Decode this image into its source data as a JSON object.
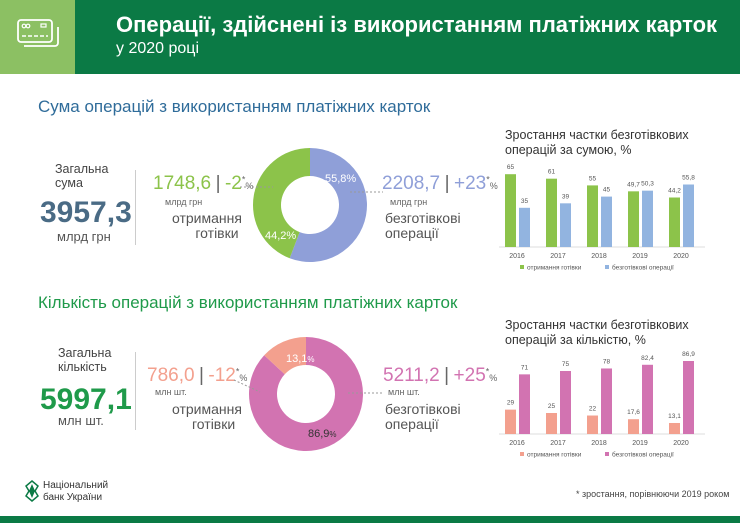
{
  "header": {
    "title": "Операції, здійснені із використанням платіжних карток",
    "subtitle": "у 2020 році",
    "icon": "credit-cards-icon"
  },
  "colors": {
    "header": "#0b7a45",
    "cash1": "#8cc34a",
    "cashless1": "#8f9fd8",
    "cashlessbar1": "#92b4e0",
    "cash2": "#f3a08e",
    "cashless2": "#d273b1"
  },
  "sum": {
    "heading": "Сума операцій з використанням платіжних карток",
    "total_label": "Загальна сума",
    "total": "3957,3",
    "total_unit": "млрд грн",
    "cash": {
      "value": "1748,6",
      "change": "-2",
      "star": "*",
      "pct": "%",
      "unit": "млрд грн",
      "label1": "отримання",
      "label2": "готівки",
      "share": "44,2%"
    },
    "cashless": {
      "value": "2208,7",
      "change": "+23",
      "star": "*",
      "pct": "%",
      "unit": "млрд грн",
      "label1": "безготівкові",
      "label2": "операції",
      "share": "55,8%"
    }
  },
  "count": {
    "heading": "Кількість операцій з використанням платіжних карток",
    "total_label": "Загальна кількість",
    "total": "5997,1",
    "total_unit": "млн шт.",
    "cash": {
      "value": "786,0",
      "change": "-12",
      "star": "*",
      "pct": "%",
      "unit": "млн шт.",
      "label1": "отримання",
      "label2": "готівки",
      "share": "13,1",
      "share_pct": "%"
    },
    "cashless": {
      "value": "5211,2",
      "change": "+25",
      "star": "*",
      "pct": "%",
      "unit": "млн шт.",
      "label1": "безготівкові",
      "label2": "операції",
      "share": "86,9",
      "share_pct": "%"
    }
  },
  "chart_data": [
    {
      "type": "bar",
      "title": "Зростання частки безготівкових операцій за сумою, %",
      "categories": [
        "2016",
        "2017",
        "2018",
        "2019",
        "2020"
      ],
      "series": [
        {
          "name": "отримання готівки",
          "values": [
            65,
            61,
            55,
            49.7,
            44.2
          ],
          "labels": [
            "65",
            "61",
            "55",
            "49,7",
            "44,2"
          ]
        },
        {
          "name": "безготівкові операції",
          "values": [
            35,
            39,
            45,
            50.3,
            55.8
          ],
          "labels": [
            "35",
            "39",
            "45",
            "50,3",
            "55,8"
          ]
        }
      ],
      "legend": "bottom"
    },
    {
      "type": "bar",
      "title": "Зростання частки безготівкових операцій за кількістю, %",
      "categories": [
        "2016",
        "2017",
        "2018",
        "2019",
        "2020"
      ],
      "series": [
        {
          "name": "отримання готівки",
          "values": [
            29,
            25,
            22,
            17.6,
            13.1
          ],
          "labels": [
            "29",
            "25",
            "22",
            "17,6",
            "13,1"
          ]
        },
        {
          "name": "безготівкові операції",
          "values": [
            71,
            75,
            78,
            82.4,
            86.9
          ],
          "labels": [
            "71",
            "75",
            "78",
            "82,4",
            "86,9"
          ]
        }
      ],
      "legend": "bottom"
    }
  ],
  "footer": {
    "logo1": "Національний",
    "logo2": "банк України",
    "note": "* зростання, порівнюючи 2019 роком"
  }
}
